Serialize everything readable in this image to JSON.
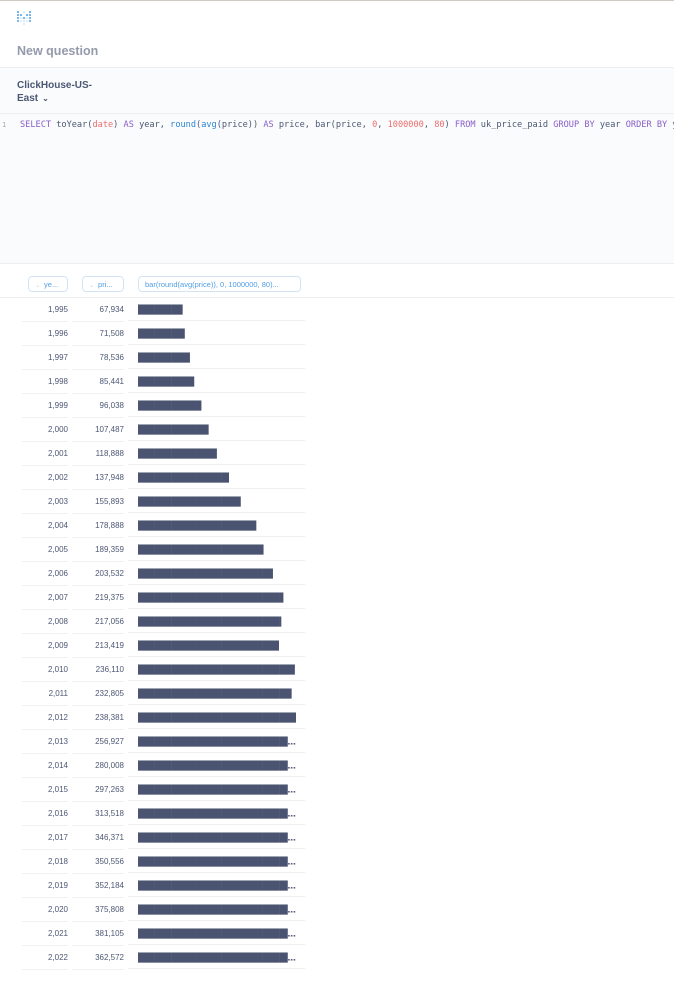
{
  "header": {
    "logo": "Metabase",
    "title": "New question"
  },
  "editor": {
    "database": "ClickHouse-US-East",
    "database_line1": "ClickHouse-US-",
    "database_line2": "East",
    "line_number": "1",
    "sql": "SELECT toYear(date) AS year, round(avg(price)) AS price, bar(price, 0, 1000000, 80) FROM uk_price_paid GROUP BY year ORDER BY year;"
  },
  "columns": [
    {
      "label": "ye...",
      "full": "year"
    },
    {
      "label": "pri...",
      "full": "price"
    },
    {
      "label": "bar(round(avg(price)), 0, 1000000, 80)..."
    }
  ],
  "rows": [
    {
      "year": "1,995",
      "price": "67,934",
      "bar": "█████▍"
    },
    {
      "year": "1,996",
      "price": "71,508",
      "bar": "█████▋"
    },
    {
      "year": "1,997",
      "price": "78,536",
      "bar": "██████▎"
    },
    {
      "year": "1,998",
      "price": "85,441",
      "bar": "██████▊"
    },
    {
      "year": "1,999",
      "price": "96,038",
      "bar": "███████▋"
    },
    {
      "year": "2,000",
      "price": "107,487",
      "bar": "████████▌"
    },
    {
      "year": "2,001",
      "price": "118,888",
      "bar": "█████████▌"
    },
    {
      "year": "2,002",
      "price": "137,948",
      "bar": "███████████"
    },
    {
      "year": "2,003",
      "price": "155,893",
      "bar": "████████████▍"
    },
    {
      "year": "2,004",
      "price": "178,888",
      "bar": "██████████████▎"
    },
    {
      "year": "2,005",
      "price": "189,359",
      "bar": "███████████████▏"
    },
    {
      "year": "2,006",
      "price": "203,532",
      "bar": "████████████████▎"
    },
    {
      "year": "2,007",
      "price": "219,375",
      "bar": "█████████████████▌"
    },
    {
      "year": "2,008",
      "price": "217,056",
      "bar": "█████████████████▎"
    },
    {
      "year": "2,009",
      "price": "213,419",
      "bar": "█████████████████"
    },
    {
      "year": "2,010",
      "price": "236,110",
      "bar": "██████████████████▉"
    },
    {
      "year": "2,011",
      "price": "232,805",
      "bar": "██████████████████▌"
    },
    {
      "year": "2,012",
      "price": "238,381",
      "bar": "███████████████████"
    },
    {
      "year": "2,013",
      "price": "256,927",
      "bar": "████████████████████▌"
    },
    {
      "year": "2,014",
      "price": "280,008",
      "bar": "██████████████████████▍"
    },
    {
      "year": "2,015",
      "price": "297,263",
      "bar": "███████████████████████▊"
    },
    {
      "year": "2,016",
      "price": "313,518",
      "bar": "█████████████████████████"
    },
    {
      "year": "2,017",
      "price": "346,371",
      "bar": "███████████████████████████▋"
    },
    {
      "year": "2,018",
      "price": "350,556",
      "bar": "████████████████████████████"
    },
    {
      "year": "2,019",
      "price": "352,184",
      "bar": "████████████████████████████▏"
    },
    {
      "year": "2,020",
      "price": "375,808",
      "bar": "██████████████████████████████"
    },
    {
      "year": "2,021",
      "price": "381,105",
      "bar": "██████████████████████████████▍"
    },
    {
      "year": "2,022",
      "price": "362,572",
      "bar": "█████████████████████████████"
    }
  ],
  "colors": {
    "accent": "#509ee3",
    "bar": "#4a5470",
    "text": "#4c5773"
  }
}
